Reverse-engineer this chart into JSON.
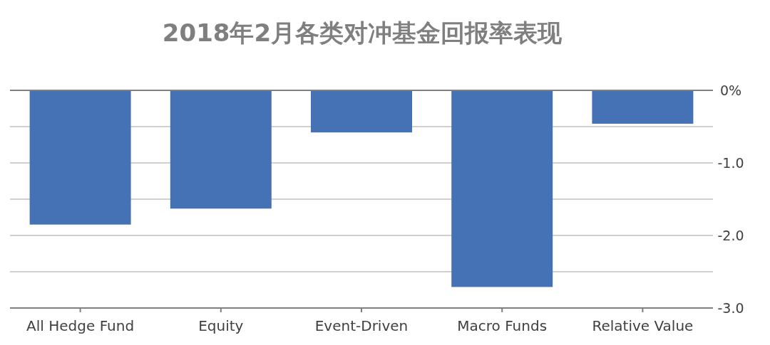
{
  "chart_data": {
    "type": "bar",
    "title": "2018年2月各类对冲基金回报率表现",
    "categories": [
      "All Hedge Fund",
      "Equity",
      "Event-Driven",
      "Macro Funds",
      "Relative Value"
    ],
    "values": [
      -1.85,
      -1.63,
      -0.58,
      -2.71,
      -0.46
    ],
    "color": "#4472b4",
    "ylim": [
      -3,
      0
    ],
    "yticks": [
      {
        "value": 0,
        "label": "0%"
      },
      {
        "value": -0.5,
        "label": null
      },
      {
        "value": -1,
        "label": "-1.0"
      },
      {
        "value": -1.5,
        "label": null
      },
      {
        "value": -2,
        "label": "-2.0"
      },
      {
        "value": -2.5,
        "label": null
      },
      {
        "value": -3,
        "label": "-3.0"
      }
    ],
    "grid": "y"
  }
}
